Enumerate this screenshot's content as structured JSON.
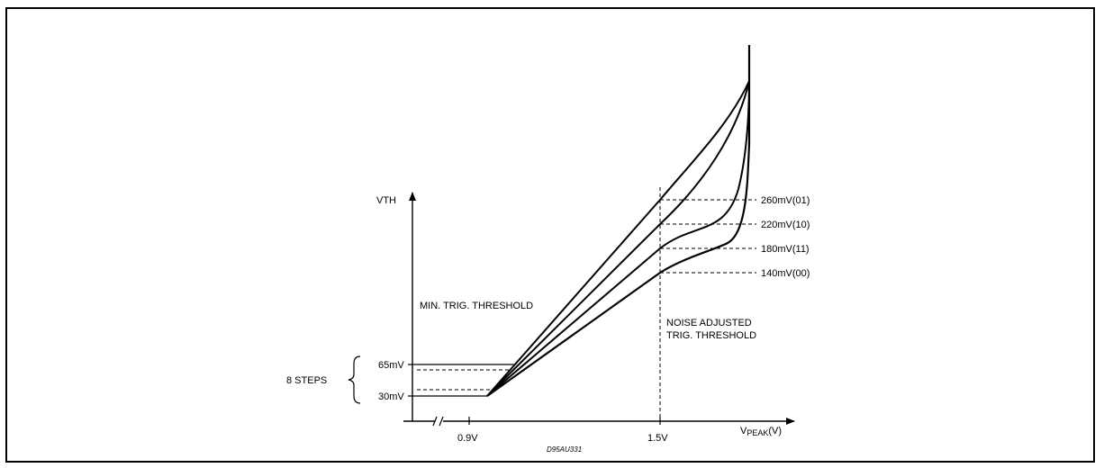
{
  "figure": {
    "y_axis_label": "VTH",
    "x_axis_label_main": "V",
    "x_axis_label_sub": "PEAK",
    "x_axis_label_unit": "(V)",
    "x_ticks": [
      "0.9V",
      "1.5V"
    ],
    "y_ticks": [
      "65mV",
      "30mV"
    ],
    "steps_label": "8 STEPS",
    "min_threshold_label": "MIN. TRIG. THRESHOLD",
    "noise_label_line1": "NOISE ADJUSTED",
    "noise_label_line2": "TRIG. THRESHOLD",
    "curve_labels": [
      "260mV(01)",
      "220mV(10)",
      "180mV(11)",
      "140mV(00)"
    ],
    "figure_code": "D95AU331"
  },
  "colors": {
    "line": "#000000",
    "background": "#ffffff"
  }
}
